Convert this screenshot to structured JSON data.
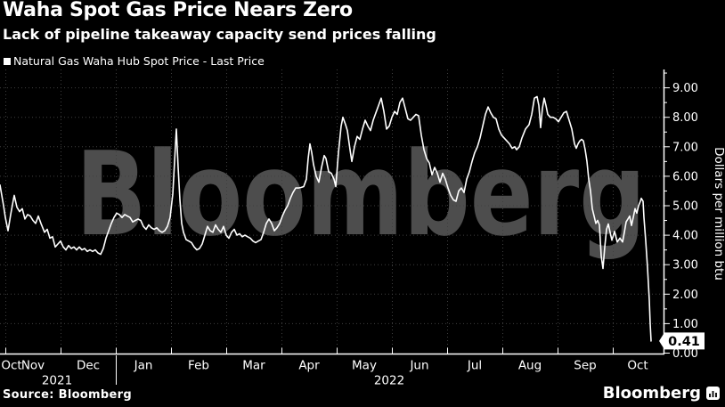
{
  "header": {
    "title": "Waha Spot Gas Price Nears Zero",
    "subtitle": "Lack of pipeline takeaway capacity send prices falling"
  },
  "legend": {
    "marker_color": "#ffffff",
    "label": "Natural Gas Waha Hub Spot Price - Last Price"
  },
  "watermark": {
    "text": "Bloomberg",
    "color": "#4d4d4d"
  },
  "footer": {
    "source": "Source: Bloomberg",
    "brand": "Bloomberg",
    "brand_icon": "bar-chart-icon"
  },
  "colors": {
    "background": "#000000",
    "text": "#ffffff",
    "axis": "#ffffff",
    "grid": "#3f3f3f",
    "line": "#ffffff",
    "watermark": "#4d4d4d",
    "callout_bg": "#ffffff",
    "callout_text": "#000000"
  },
  "chart_data": {
    "type": "line",
    "title": "Waha Spot Gas Price Nears Zero",
    "subtitle": "Lack of pipeline takeaway capacity send prices falling",
    "ylabel": "Dollars per million btu",
    "ylim": [
      0,
      9.6
    ],
    "grid": "dotted",
    "legend_position": "top-left",
    "y_tick_labels": [
      "0.00",
      "1.00",
      "2.00",
      "3.00",
      "4.00",
      "5.00",
      "6.00",
      "7.00",
      "8.00",
      "9.00"
    ],
    "last_price": {
      "value": 0.41,
      "label": "0.41"
    },
    "x_axis": {
      "length": 745,
      "boundaries": [
        6,
        68,
        130,
        192,
        254,
        316,
        378,
        440,
        502,
        564,
        626,
        688
      ],
      "months": [
        {
          "label": "Oct",
          "center": 13
        },
        {
          "label": "Nov",
          "center": 37
        },
        {
          "label": "Dec",
          "center": 99
        },
        {
          "label": "Jan",
          "center": 161
        },
        {
          "label": "Feb",
          "center": 223
        },
        {
          "label": "Mar",
          "center": 285
        },
        {
          "label": "Apr",
          "center": 347
        },
        {
          "label": "May",
          "center": 409
        },
        {
          "label": "Jun",
          "center": 471
        },
        {
          "label": "Jul",
          "center": 533
        },
        {
          "label": "Aug",
          "center": 595
        },
        {
          "label": "Sep",
          "center": 657
        },
        {
          "label": "Oct",
          "center": 716
        }
      ],
      "years": [
        {
          "label": "2021",
          "center": 64
        },
        {
          "label": "2022",
          "center": 437
        }
      ],
      "year_divider_x": 130
    },
    "series": [
      {
        "name": "Natural Gas Waha Hub Spot Price - Last Price",
        "color": "#ffffff",
        "points": [
          [
            0,
            5.7
          ],
          [
            2,
            5.35
          ],
          [
            4,
            5.0
          ],
          [
            6,
            4.6
          ],
          [
            9,
            4.15
          ],
          [
            12,
            4.7
          ],
          [
            15,
            5.2
          ],
          [
            16,
            5.35
          ],
          [
            19,
            4.95
          ],
          [
            22,
            4.8
          ],
          [
            25,
            4.9
          ],
          [
            28,
            4.55
          ],
          [
            31,
            4.7
          ],
          [
            34,
            4.65
          ],
          [
            37,
            4.5
          ],
          [
            40,
            4.4
          ],
          [
            43,
            4.65
          ],
          [
            46,
            4.4
          ],
          [
            50,
            4.1
          ],
          [
            53,
            4.2
          ],
          [
            56,
            3.9
          ],
          [
            59,
            3.95
          ],
          [
            62,
            3.6
          ],
          [
            65,
            3.7
          ],
          [
            68,
            3.8
          ],
          [
            71,
            3.6
          ],
          [
            74,
            3.5
          ],
          [
            77,
            3.65
          ],
          [
            80,
            3.55
          ],
          [
            83,
            3.6
          ],
          [
            86,
            3.5
          ],
          [
            89,
            3.6
          ],
          [
            92,
            3.5
          ],
          [
            95,
            3.55
          ],
          [
            98,
            3.45
          ],
          [
            101,
            3.5
          ],
          [
            104,
            3.45
          ],
          [
            107,
            3.5
          ],
          [
            110,
            3.4
          ],
          [
            113,
            3.35
          ],
          [
            116,
            3.55
          ],
          [
            119,
            3.9
          ],
          [
            122,
            4.15
          ],
          [
            125,
            4.4
          ],
          [
            128,
            4.6
          ],
          [
            131,
            4.75
          ],
          [
            134,
            4.7
          ],
          [
            137,
            4.6
          ],
          [
            140,
            4.7
          ],
          [
            143,
            4.65
          ],
          [
            146,
            4.6
          ],
          [
            149,
            4.45
          ],
          [
            152,
            4.5
          ],
          [
            155,
            4.55
          ],
          [
            158,
            4.5
          ],
          [
            161,
            4.3
          ],
          [
            164,
            4.2
          ],
          [
            167,
            4.35
          ],
          [
            170,
            4.25
          ],
          [
            173,
            4.2
          ],
          [
            176,
            4.25
          ],
          [
            179,
            4.15
          ],
          [
            182,
            4.1
          ],
          [
            185,
            4.15
          ],
          [
            188,
            4.3
          ],
          [
            191,
            4.6
          ],
          [
            194,
            5.4
          ],
          [
            196,
            6.5
          ],
          [
            198,
            7.6
          ],
          [
            200,
            6.3
          ],
          [
            202,
            5.2
          ],
          [
            204,
            4.4
          ],
          [
            206,
            4.1
          ],
          [
            209,
            3.85
          ],
          [
            212,
            3.8
          ],
          [
            215,
            3.75
          ],
          [
            218,
            3.6
          ],
          [
            221,
            3.5
          ],
          [
            224,
            3.55
          ],
          [
            227,
            3.7
          ],
          [
            230,
            4.0
          ],
          [
            233,
            4.3
          ],
          [
            236,
            4.15
          ],
          [
            239,
            4.1
          ],
          [
            242,
            4.35
          ],
          [
            245,
            4.2
          ],
          [
            248,
            4.1
          ],
          [
            251,
            4.3
          ],
          [
            254,
            4.0
          ],
          [
            257,
            3.9
          ],
          [
            260,
            4.1
          ],
          [
            263,
            4.2
          ],
          [
            266,
            4.0
          ],
          [
            269,
            4.05
          ],
          [
            272,
            3.95
          ],
          [
            275,
            4.0
          ],
          [
            278,
            3.95
          ],
          [
            281,
            3.9
          ],
          [
            284,
            3.8
          ],
          [
            287,
            3.75
          ],
          [
            290,
            3.8
          ],
          [
            293,
            3.85
          ],
          [
            296,
            4.1
          ],
          [
            299,
            4.4
          ],
          [
            302,
            4.55
          ],
          [
            305,
            4.4
          ],
          [
            308,
            4.15
          ],
          [
            311,
            4.25
          ],
          [
            314,
            4.4
          ],
          [
            317,
            4.65
          ],
          [
            320,
            4.85
          ],
          [
            323,
            5.0
          ],
          [
            326,
            5.25
          ],
          [
            329,
            5.45
          ],
          [
            332,
            5.6
          ],
          [
            335,
            5.6
          ],
          [
            338,
            5.62
          ],
          [
            341,
            5.65
          ],
          [
            344,
            5.9
          ],
          [
            346,
            6.6
          ],
          [
            348,
            7.1
          ],
          [
            350,
            6.8
          ],
          [
            352,
            6.4
          ],
          [
            355,
            6.0
          ],
          [
            358,
            5.8
          ],
          [
            361,
            6.3
          ],
          [
            364,
            6.7
          ],
          [
            366,
            6.6
          ],
          [
            369,
            6.15
          ],
          [
            372,
            6.1
          ],
          [
            375,
            5.9
          ],
          [
            377,
            5.65
          ],
          [
            380,
            6.8
          ],
          [
            383,
            7.7
          ],
          [
            385,
            8.0
          ],
          [
            388,
            7.75
          ],
          [
            390,
            7.55
          ],
          [
            393,
            6.9
          ],
          [
            395,
            6.5
          ],
          [
            398,
            7.0
          ],
          [
            401,
            7.35
          ],
          [
            404,
            7.25
          ],
          [
            407,
            7.6
          ],
          [
            410,
            7.9
          ],
          [
            413,
            7.7
          ],
          [
            416,
            7.55
          ],
          [
            419,
            7.9
          ],
          [
            422,
            8.15
          ],
          [
            425,
            8.4
          ],
          [
            428,
            8.65
          ],
          [
            431,
            8.2
          ],
          [
            434,
            7.6
          ],
          [
            437,
            7.7
          ],
          [
            440,
            8.0
          ],
          [
            443,
            8.2
          ],
          [
            446,
            8.1
          ],
          [
            449,
            8.5
          ],
          [
            452,
            8.65
          ],
          [
            455,
            8.3
          ],
          [
            458,
            7.95
          ],
          [
            461,
            7.9
          ],
          [
            464,
            8.0
          ],
          [
            467,
            8.1
          ],
          [
            470,
            8.05
          ],
          [
            473,
            7.4
          ],
          [
            476,
            6.9
          ],
          [
            479,
            6.6
          ],
          [
            482,
            6.45
          ],
          [
            485,
            6.05
          ],
          [
            488,
            6.3
          ],
          [
            491,
            6.1
          ],
          [
            494,
            5.8
          ],
          [
            497,
            6.1
          ],
          [
            500,
            5.9
          ],
          [
            503,
            5.6
          ],
          [
            506,
            5.35
          ],
          [
            509,
            5.2
          ],
          [
            512,
            5.15
          ],
          [
            515,
            5.5
          ],
          [
            518,
            5.6
          ],
          [
            521,
            5.45
          ],
          [
            524,
            5.9
          ],
          [
            527,
            6.15
          ],
          [
            530,
            6.5
          ],
          [
            533,
            6.8
          ],
          [
            536,
            7.0
          ],
          [
            539,
            7.3
          ],
          [
            542,
            7.7
          ],
          [
            545,
            8.1
          ],
          [
            548,
            8.35
          ],
          [
            551,
            8.15
          ],
          [
            554,
            8.0
          ],
          [
            557,
            7.95
          ],
          [
            560,
            7.6
          ],
          [
            563,
            7.4
          ],
          [
            566,
            7.3
          ],
          [
            569,
            7.2
          ],
          [
            572,
            7.1
          ],
          [
            575,
            6.95
          ],
          [
            578,
            7.0
          ],
          [
            580,
            6.9
          ],
          [
            583,
            7.0
          ],
          [
            586,
            7.3
          ],
          [
            590,
            7.6
          ],
          [
            594,
            7.75
          ],
          [
            597,
            8.1
          ],
          [
            600,
            8.65
          ],
          [
            603,
            8.7
          ],
          [
            605,
            8.4
          ],
          [
            607,
            7.65
          ],
          [
            609,
            8.3
          ],
          [
            611,
            8.65
          ],
          [
            613,
            8.4
          ],
          [
            615,
            8.1
          ],
          [
            618,
            8.0
          ],
          [
            621,
            8.0
          ],
          [
            624,
            7.95
          ],
          [
            627,
            7.85
          ],
          [
            630,
            8.0
          ],
          [
            633,
            8.15
          ],
          [
            636,
            8.2
          ],
          [
            639,
            7.9
          ],
          [
            642,
            7.6
          ],
          [
            645,
            7.1
          ],
          [
            647,
            6.95
          ],
          [
            649,
            7.1
          ],
          [
            651,
            7.2
          ],
          [
            653,
            7.25
          ],
          [
            655,
            7.2
          ],
          [
            657,
            6.9
          ],
          [
            659,
            6.5
          ],
          [
            661,
            5.9
          ],
          [
            663,
            5.5
          ],
          [
            665,
            4.9
          ],
          [
            667,
            4.65
          ],
          [
            669,
            4.4
          ],
          [
            671,
            4.5
          ],
          [
            673,
            4.35
          ],
          [
            675,
            3.3
          ],
          [
            677,
            2.87
          ],
          [
            679,
            3.6
          ],
          [
            681,
            4.2
          ],
          [
            683,
            4.38
          ],
          [
            685,
            4.1
          ],
          [
            687,
            3.83
          ],
          [
            690,
            4.13
          ],
          [
            693,
            3.77
          ],
          [
            696,
            3.9
          ],
          [
            699,
            3.77
          ],
          [
            701,
            4.1
          ],
          [
            703,
            4.45
          ],
          [
            705,
            4.55
          ],
          [
            707,
            4.65
          ],
          [
            709,
            4.33
          ],
          [
            711,
            4.6
          ],
          [
            713,
            4.9
          ],
          [
            715,
            4.75
          ],
          [
            717,
            5.0
          ],
          [
            719,
            5.15
          ],
          [
            720,
            5.25
          ],
          [
            722,
            5.15
          ],
          [
            723,
            4.6
          ],
          [
            725,
            3.8
          ],
          [
            727,
            2.9
          ],
          [
            729,
            1.8
          ],
          [
            730,
            1.0
          ],
          [
            731,
            0.41
          ]
        ]
      }
    ]
  }
}
